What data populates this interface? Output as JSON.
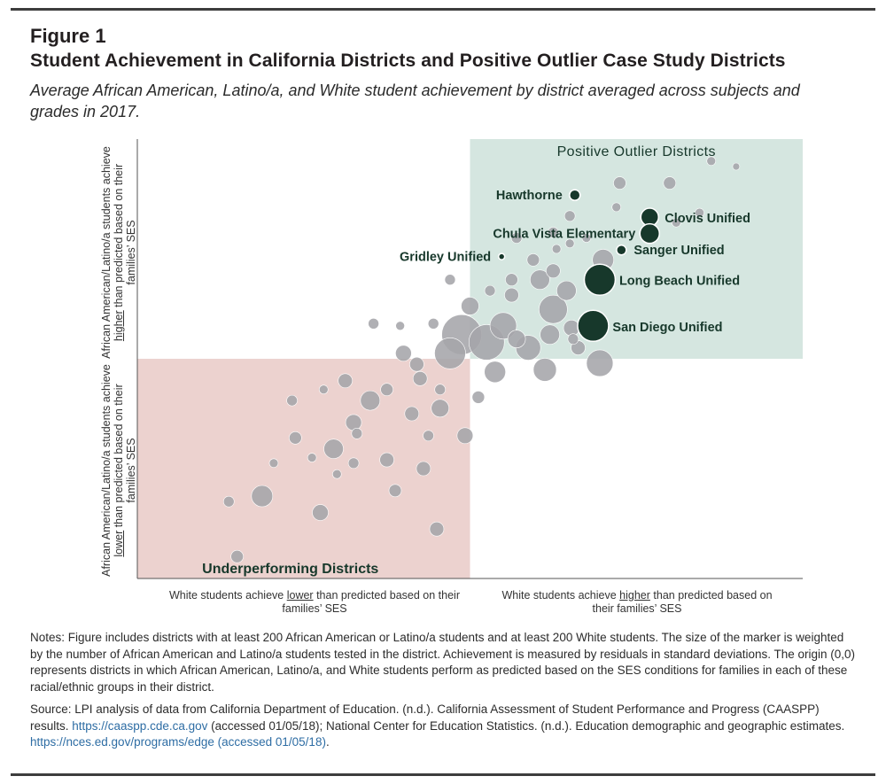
{
  "figure": {
    "label": "Figure 1",
    "title": "Student Achievement in California Districts and Positive Outlier Case Study Districts",
    "subtitle": "Average African American, Latino/a, and White student achievement by district averaged across subjects and grades in 2017."
  },
  "colors": {
    "positive_region": "#d5e6e0",
    "underperforming_region": "#ecd2cf",
    "bubble_gray": "#a5a5aa",
    "highlight_green": "#17382b",
    "region_title": "#17382b",
    "link": "#2e6da4"
  },
  "chart_data": {
    "type": "scatter",
    "xlim": [
      -2,
      2
    ],
    "ylim": [
      -2,
      2
    ],
    "grid": false,
    "regions": [
      {
        "name": "Positive Outlier Districts",
        "x": [
          0,
          2
        ],
        "y": [
          0,
          2
        ]
      },
      {
        "name": "Underperforming Districts",
        "x": [
          -2,
          0
        ],
        "y": [
          -2,
          0
        ]
      }
    ],
    "axis_labels": {
      "y_top": {
        "pre": "African American/Latino/a students achieve ",
        "key": "higher",
        "post": " than predicted based on their families’ SES"
      },
      "y_bottom": {
        "pre": "African American/Latino/a students achieve ",
        "key": "lower",
        "post": " than predicted based on their families’ SES"
      },
      "x_left": {
        "pre": "White students achieve ",
        "key": "lower",
        "post": " than predicted based on their families’ SES"
      },
      "x_right": {
        "pre": "White students achieve ",
        "key": "higher",
        "post": " than predicted based on their families’ SES"
      }
    },
    "highlighted": [
      {
        "name": "Hawthorne",
        "x": 0.63,
        "y": 1.49,
        "size": 12
      },
      {
        "name": "Clovis Unified",
        "x": 1.08,
        "y": 1.29,
        "size": 20
      },
      {
        "name": "Chula Vista Elementary",
        "x": 1.08,
        "y": 1.14,
        "size": 22
      },
      {
        "name": "Sanger Unified",
        "x": 0.91,
        "y": 0.99,
        "size": 11
      },
      {
        "name": "Gridley Unified",
        "x": 0.19,
        "y": 0.93,
        "size": 7
      },
      {
        "name": "Long Beach Unified",
        "x": 0.78,
        "y": 0.72,
        "size": 35
      },
      {
        "name": "San Diego Unified",
        "x": 0.74,
        "y": 0.3,
        "size": 35
      }
    ],
    "districts": [
      [
        -0.05,
        0.22,
        45
      ],
      [
        0.1,
        0.15,
        40
      ],
      [
        -0.12,
        0.05,
        35
      ],
      [
        0.2,
        0.3,
        30
      ],
      [
        0.35,
        0.1,
        28
      ],
      [
        0.5,
        0.45,
        32
      ],
      [
        0.8,
        0.9,
        24
      ],
      [
        1.2,
        1.6,
        14
      ],
      [
        1.45,
        1.8,
        10
      ],
      [
        1.6,
        1.75,
        8
      ],
      [
        0.42,
        0.72,
        22
      ],
      [
        0.61,
        0.28,
        18
      ],
      [
        0.78,
        -0.04,
        30
      ],
      [
        0.45,
        -0.1,
        26
      ],
      [
        0.15,
        -0.12,
        24
      ],
      [
        -0.18,
        -0.45,
        20
      ],
      [
        -0.6,
        -0.38,
        22
      ],
      [
        -0.7,
        -0.58,
        18
      ],
      [
        -0.5,
        -0.92,
        16
      ],
      [
        -0.82,
        -0.82,
        22
      ],
      [
        -1.25,
        -1.25,
        24
      ],
      [
        -0.9,
        -1.4,
        18
      ],
      [
        -0.2,
        -1.55,
        16
      ],
      [
        -1.4,
        -1.8,
        14
      ],
      [
        -1.07,
        -0.38,
        12
      ],
      [
        -0.95,
        -0.9,
        10
      ],
      [
        -1.45,
        -1.3,
        12
      ],
      [
        -0.03,
        -0.7,
        18
      ],
      [
        -0.28,
        -1.0,
        16
      ],
      [
        -0.45,
        -1.2,
        14
      ],
      [
        -0.58,
        0.32,
        12
      ],
      [
        -0.4,
        0.05,
        18
      ],
      [
        -0.3,
        -0.18,
        16
      ],
      [
        0.25,
        0.72,
        14
      ],
      [
        0.6,
        1.3,
        12
      ],
      [
        0.28,
        1.1,
        12
      ],
      [
        0.5,
        1.15,
        12
      ],
      [
        0.9,
        1.6,
        14
      ],
      [
        -0.12,
        0.72,
        12
      ],
      [
        -0.5,
        -0.28,
        14
      ],
      [
        -0.75,
        -0.2,
        16
      ],
      [
        -0.68,
        -0.68,
        12
      ],
      [
        0.5,
        0.8,
        16
      ],
      [
        0.65,
        0.1,
        16
      ],
      [
        0.28,
        0.18,
        20
      ],
      [
        0.0,
        0.48,
        20
      ],
      [
        -0.25,
        -0.7,
        12
      ],
      [
        -0.7,
        -0.95,
        12
      ],
      [
        1.24,
        1.24,
        10
      ],
      [
        0.88,
        1.38,
        10
      ],
      [
        1.38,
        1.33,
        10
      ],
      [
        0.38,
        0.9,
        14
      ],
      [
        0.05,
        -0.35,
        14
      ],
      [
        -0.88,
        -0.28,
        10
      ],
      [
        -1.05,
        -0.72,
        14
      ],
      [
        -1.18,
        -0.95,
        10
      ],
      [
        -0.8,
        -1.05,
        10
      ],
      [
        -0.32,
        -0.05,
        16
      ],
      [
        -0.35,
        -0.5,
        16
      ],
      [
        0.58,
        0.62,
        22
      ],
      [
        0.62,
        0.18,
        12
      ],
      [
        0.48,
        0.22,
        22
      ],
      [
        0.25,
        0.58,
        16
      ],
      [
        0.12,
        0.62,
        12
      ],
      [
        -0.22,
        0.32,
        12
      ],
      [
        -0.42,
        0.3,
        10
      ],
      [
        0.6,
        1.05,
        10
      ],
      [
        0.7,
        1.1,
        10
      ],
      [
        0.52,
        1.0,
        10
      ],
      [
        -0.18,
        -0.28,
        12
      ]
    ]
  },
  "notes": "Notes: Figure includes districts with at least 200 African American or Latino/a students and at least 200 White students. The size of the marker is weighted by the number of African American and Latino/a students tested in the district. Achievement is measured by residuals in standard deviations. The origin (0,0) represents districts in which African American, Latino/a, and White students perform as predicted based on the SES conditions for families in each of these racial/ethnic groups in their district.",
  "source": {
    "part1": "Source: LPI analysis of data from California Department of Education. (n.d.). California Assessment of Student Performance and Progress (CAASPP) results. ",
    "link1": "https://caaspp.cde.ca.gov",
    "part2": " (accessed 01/05/18); National Center for Education Statistics. (n.d.). Education demographic and geographic estimates. ",
    "link2": "https://nces.ed.gov/programs/edge (accessed 01/05/18)",
    "part3": "."
  }
}
